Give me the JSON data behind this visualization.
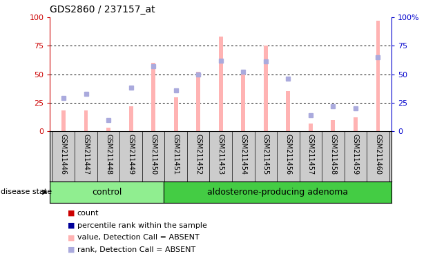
{
  "title": "GDS2860 / 237157_at",
  "samples": [
    "GSM211446",
    "GSM211447",
    "GSM211448",
    "GSM211449",
    "GSM211450",
    "GSM211451",
    "GSM211452",
    "GSM211453",
    "GSM211454",
    "GSM211455",
    "GSM211456",
    "GSM211457",
    "GSM211458",
    "GSM211459",
    "GSM211460"
  ],
  "control_count": 5,
  "adenoma_count": 10,
  "bar_values": [
    18,
    18,
    3,
    22,
    60,
    30,
    52,
    83,
    52,
    75,
    35,
    7,
    10,
    12,
    97
  ],
  "rank_values": [
    29,
    33,
    10,
    38,
    57,
    36,
    50,
    62,
    52,
    61,
    46,
    14,
    22,
    20,
    65
  ],
  "bar_color": "#ffb3b3",
  "rank_color": "#aaaadd",
  "absent_flags": [
    false,
    false,
    true,
    false,
    false,
    false,
    false,
    false,
    false,
    false,
    false,
    false,
    false,
    false,
    false
  ],
  "ylim": [
    0,
    100
  ],
  "yticks": [
    0,
    25,
    50,
    75,
    100
  ],
  "control_label": "control",
  "adenoma_label": "aldosterone-producing adenoma",
  "disease_state_label": "disease state",
  "legend_colors": [
    "#cc0000",
    "#000099",
    "#ffb3b3",
    "#aaaadd"
  ],
  "legend_labels": [
    "count",
    "percentile rank within the sample",
    "value, Detection Call = ABSENT",
    "rank, Detection Call = ABSENT"
  ],
  "control_bg": "#90ee90",
  "adenoma_bg": "#44cc44",
  "xticklabel_bg": "#cccccc",
  "right_axis_color": "#0000cc",
  "left_axis_color": "#cc0000"
}
